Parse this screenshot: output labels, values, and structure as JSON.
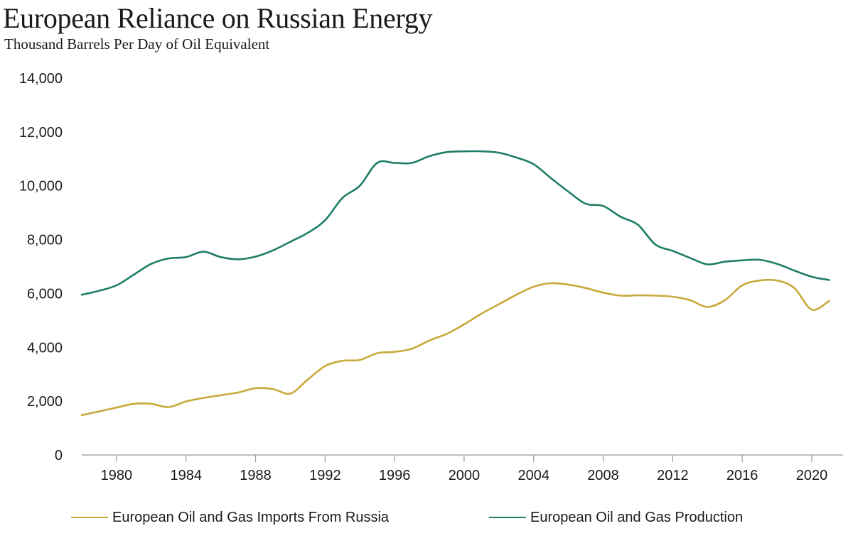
{
  "chart_data": {
    "type": "line",
    "title": "European Reliance on Russian Energy",
    "subtitle": "Thousand Barrels Per Day of Oil Equivalent",
    "xlabel": "",
    "ylabel": "",
    "xlim": [
      1978,
      2021.8
    ],
    "ylim": [
      0,
      14000
    ],
    "x_ticks": [
      1980,
      1984,
      1988,
      1992,
      1996,
      2000,
      2004,
      2008,
      2012,
      2016,
      2020
    ],
    "y_ticks": [
      0,
      2000,
      4000,
      6000,
      8000,
      10000,
      12000,
      14000
    ],
    "y_tick_labels": [
      "0",
      "2,000",
      "4,000",
      "6,000",
      "8,000",
      "10,000",
      "12,000",
      "14,000"
    ],
    "grid": false,
    "legend_position": "bottom",
    "x": [
      1978,
      1979,
      1980,
      1981,
      1982,
      1983,
      1984,
      1985,
      1986,
      1987,
      1988,
      1989,
      1990,
      1991,
      1992,
      1993,
      1994,
      1995,
      1996,
      1997,
      1998,
      1999,
      2000,
      2001,
      2002,
      2003,
      2004,
      2005,
      2006,
      2007,
      2008,
      2009,
      2010,
      2011,
      2012,
      2013,
      2014,
      2015,
      2016,
      2017,
      2018,
      2019,
      2020,
      2021
    ],
    "series": [
      {
        "name": "European Oil and Gas Imports From Russia",
        "color": "#c9a93a",
        "values": [
          1480,
          1620,
          1760,
          1900,
          1900,
          1780,
          1990,
          2120,
          2220,
          2320,
          2480,
          2450,
          2280,
          2800,
          3300,
          3500,
          3530,
          3780,
          3830,
          3950,
          4250,
          4500,
          4850,
          5250,
          5600,
          5950,
          6250,
          6380,
          6330,
          6200,
          6030,
          5920,
          5930,
          5920,
          5880,
          5750,
          5500,
          5750,
          6300,
          6480,
          6480,
          6200,
          5400,
          5720
        ]
      },
      {
        "name": "European Oil and Gas Production",
        "color": "#1e7d68",
        "values": [
          5950,
          6100,
          6300,
          6700,
          7100,
          7300,
          7350,
          7550,
          7350,
          7270,
          7370,
          7600,
          7920,
          8250,
          8720,
          9550,
          10000,
          10850,
          10850,
          10850,
          11100,
          11250,
          11280,
          11280,
          11230,
          11050,
          10800,
          10280,
          9780,
          9330,
          9250,
          8850,
          8550,
          7820,
          7580,
          7320,
          7080,
          7180,
          7230,
          7250,
          7100,
          6850,
          6620,
          6500
        ]
      }
    ]
  }
}
